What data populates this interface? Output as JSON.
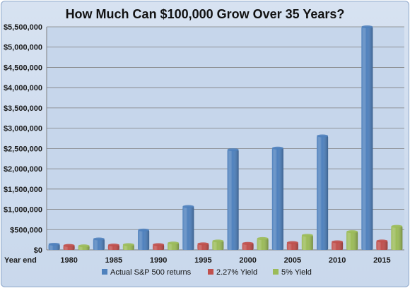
{
  "chart_data": {
    "type": "bar",
    "title": "How Much Can $100,000 Grow Over 35 Years?",
    "xlabel": "Year end",
    "ylabel": "",
    "categories": [
      "1980",
      "1985",
      "1990",
      "1995",
      "2000",
      "2005",
      "2010",
      "2015"
    ],
    "series": [
      {
        "name": "Actual S&P 500 returns",
        "color": "#4f81bd",
        "values": [
          140000,
          270000,
          490000,
          1070000,
          2470000,
          2510000,
          2810000,
          5510000
        ]
      },
      {
        "name": "2.27% Yield",
        "color": "#c0504d",
        "values": [
          110000,
          120000,
          130000,
          150000,
          160000,
          180000,
          200000,
          220000
        ]
      },
      {
        "name": "5% Yield",
        "color": "#9bbb59",
        "values": [
          100000,
          130000,
          170000,
          220000,
          280000,
          360000,
          450000,
          580000
        ]
      }
    ],
    "ylim": [
      0,
      5500000
    ],
    "yticks": [
      "$0",
      "$500,000",
      "$1,000,000",
      "$1,500,000",
      "$2,000,000",
      "$2,500,000",
      "$3,000,000",
      "$3,500,000",
      "$4,000,000",
      "$4,500,000",
      "$5,000,000",
      "$5,500,000"
    ],
    "grid": true,
    "legend_position": "bottom"
  }
}
